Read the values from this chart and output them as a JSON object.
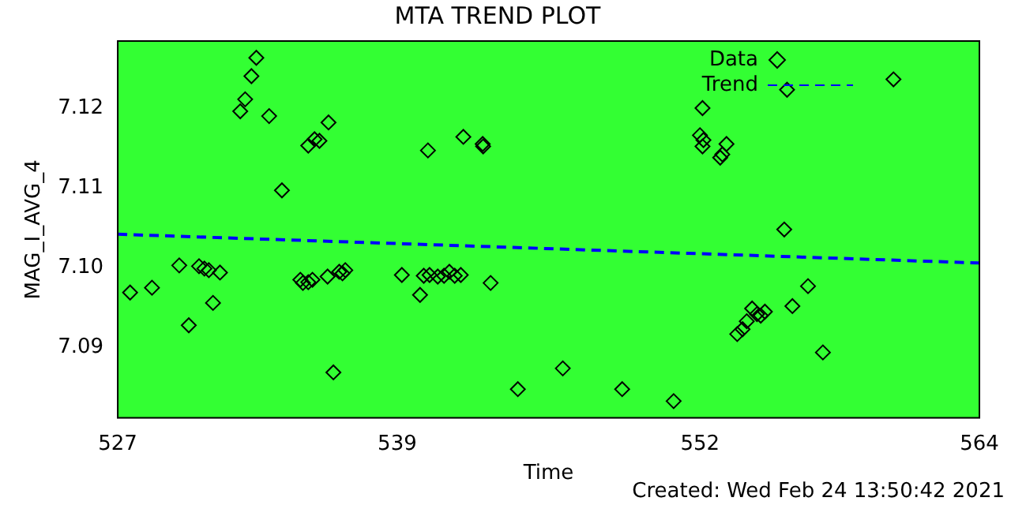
{
  "chart_data": {
    "type": "scatter",
    "title": "MTA TREND PLOT",
    "xlabel": "Time",
    "ylabel": "MAG_I_AVG_4",
    "xlim": [
      527,
      564
    ],
    "xticks": [
      527,
      539,
      552,
      564
    ],
    "ylim": [
      7.0812,
      7.1284
    ],
    "yticks": [
      7.09,
      {
        "value": 7.1,
        "label": "7.10"
      },
      7.11,
      7.12
    ],
    "legend": "top right",
    "grid": false,
    "annotations": [
      "Created: Wed Feb 24 13:50:42 2021"
    ],
    "series": [
      {
        "name": "Data",
        "type": "scatter",
        "marker": "diamond",
        "color": "#000000",
        "x": [
          527.53,
          528.47,
          529.64,
          530.05,
          530.49,
          530.72,
          530.91,
          531.09,
          531.39,
          532.26,
          532.47,
          532.74,
          532.95,
          533.5,
          534.05,
          534.84,
          534.95,
          535.18,
          535.36,
          535.18,
          535.45,
          535.66,
          536.05,
          536.01,
          536.26,
          536.51,
          536.65,
          536.77,
          539.2,
          539.98,
          540.32,
          540.14,
          540.39,
          540.74,
          541.01,
          541.24,
          541.47,
          541.73,
          541.84,
          542.67,
          542.69,
          543.01,
          544.18,
          546.11,
          548.66,
          550.87,
          552.11,
          552,
          552.15,
          552.11,
          552.87,
          552.96,
          553.14,
          553.6,
          553.83,
          554.01,
          554.24,
          554.45,
          554.61,
          554.79,
          555.62,
          555.74,
          555.97,
          556.64,
          557.28,
          560.31
        ],
        "values": [
          7.0969,
          7.0975,
          7.1003,
          7.0928,
          7.1002,
          7.0999,
          7.0997,
          7.0956,
          7.0994,
          7.1196,
          7.1211,
          7.124,
          7.1263,
          7.119,
          7.1097,
          7.0985,
          7.0981,
          7.0982,
          7.0985,
          7.1153,
          7.1161,
          7.1159,
          7.1182,
          7.0989,
          7.0869,
          7.0995,
          7.0993,
          7.0997,
          7.0991,
          7.0966,
          7.1147,
          7.099,
          7.0991,
          7.0989,
          7.099,
          7.0995,
          7.099,
          7.0991,
          7.1164,
          7.1155,
          7.1152,
          7.0981,
          7.0848,
          7.0874,
          7.0848,
          7.0833,
          7.12,
          7.1166,
          7.116,
          7.1152,
          7.1138,
          7.1142,
          7.1155,
          7.0917,
          7.0923,
          7.0933,
          7.0949,
          7.0942,
          7.094,
          7.0945,
          7.1048,
          7.1223,
          7.0952,
          7.0977,
          7.0894,
          7.1236
        ]
      },
      {
        "name": "Trend",
        "type": "line",
        "marker": "none",
        "line_style": "dashed",
        "color": "#0000ff",
        "x": [
          527,
          564
        ],
        "values": [
          7.1042,
          7.1006
        ]
      }
    ]
  }
}
